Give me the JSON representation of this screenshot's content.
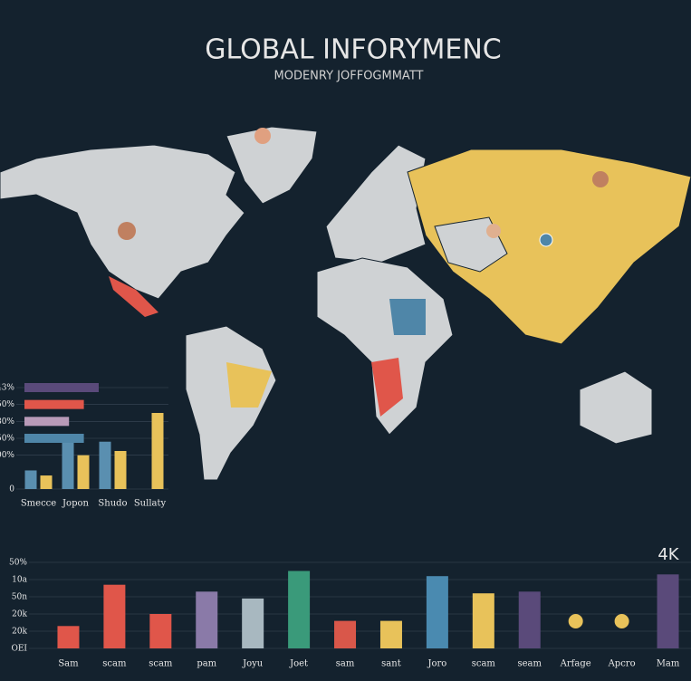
{
  "title": "GLOBAL INFORYMENC",
  "subtitle": "MODENRY JOFFOGMMATT",
  "chart_data": [
    {
      "type": "bar",
      "categories": [
        "Smecce",
        "Jopon",
        "Shudo",
        "Sullaty"
      ],
      "ylim": [
        0,
        6
      ],
      "yticks": [
        {
          "value": 6,
          "label": "43%"
        },
        {
          "value": 5,
          "label": "50%"
        },
        {
          "value": 4,
          "label": "80%"
        },
        {
          "value": 3,
          "label": "50%"
        },
        {
          "value": 2,
          "label": "00%"
        },
        0
      ],
      "series": [
        {
          "color": "#5a8fb0",
          "values": [
            1.1,
            3.1,
            2.8,
            null
          ]
        },
        {
          "color": "#e8c25a",
          "values": [
            0.8,
            2.0,
            2.25,
            4.5
          ]
        }
      ],
      "xlim": [
        0,
        6
      ],
      "hbars": {
        "colors": [
          "#5a4a7a",
          "#e0564a",
          "#b89ab8",
          "#4f86a8"
        ],
        "values": [
          3.0,
          2.4,
          1.8,
          2.4
        ]
      }
    },
    {
      "type": "bar",
      "categories": [
        "Sam",
        "scam",
        "scam",
        "pam",
        "Joyu",
        "Joet",
        "sam",
        "sant",
        "Joro",
        "scam",
        "seam",
        "Arfage",
        "Apcro",
        "Mam"
      ],
      "values": [
        1.3,
        3.7,
        2.0,
        3.3,
        2.9,
        4.5,
        1.6,
        1.6,
        4.2,
        3.2,
        3.3,
        null,
        null,
        4.3
      ],
      "colors": [
        "#e0564a",
        "#e0564a",
        "#e0564a",
        "#8a7aa8",
        "#a8b8c0",
        "#3a9a7a",
        "#d9574a",
        "#e8c25a",
        "#4a8ab0",
        "#e8c25a",
        "#5a4a7a",
        "#e8c25a",
        "#e8c25a",
        "#5a4a7a"
      ],
      "ylim": [
        0,
        5
      ],
      "yticks": [
        {
          "value": 5,
          "label": "50%"
        },
        {
          "value": 4,
          "label": "10a"
        },
        {
          "value": 3,
          "label": "50n"
        },
        {
          "value": 2,
          "label": "20k"
        },
        {
          "value": 1,
          "label": "20k"
        },
        {
          "value": 0,
          "label": "OEI"
        }
      ],
      "annotation": "4K"
    }
  ]
}
